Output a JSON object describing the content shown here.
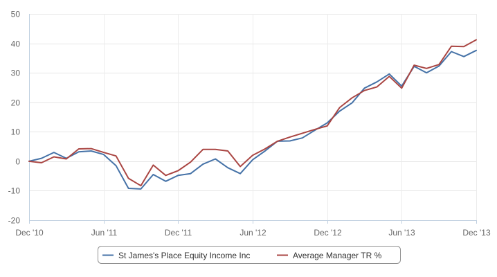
{
  "chart_data": {
    "type": "line",
    "title": "",
    "xlabel": "",
    "ylabel": "",
    "ylim": [
      -20,
      50
    ],
    "yticks": [
      -20,
      -10,
      0,
      10,
      20,
      30,
      40,
      50
    ],
    "xticks": [
      "Dec '10",
      "Jun '11",
      "Dec '11",
      "Jun '12",
      "Dec '12",
      "Jun '13",
      "Dec '13"
    ],
    "x": [
      "2010-12",
      "2011-01",
      "2011-02",
      "2011-03",
      "2011-04",
      "2011-05",
      "2011-06",
      "2011-07",
      "2011-08",
      "2011-09",
      "2011-10",
      "2011-11",
      "2011-12",
      "2012-01",
      "2012-02",
      "2012-03",
      "2012-04",
      "2012-05",
      "2012-06",
      "2012-07",
      "2012-08",
      "2012-09",
      "2012-10",
      "2012-11",
      "2012-12",
      "2013-01",
      "2013-02",
      "2013-03",
      "2013-04",
      "2013-05",
      "2013-06",
      "2013-07",
      "2013-08",
      "2013-09",
      "2013-10",
      "2013-11",
      "2013-12"
    ],
    "series": [
      {
        "name": "St James's Place Equity Income Inc",
        "color": "#4572a7",
        "values": [
          0,
          1,
          3,
          1,
          3.2,
          3.5,
          2.3,
          -1.5,
          -9.2,
          -9.4,
          -4.5,
          -6.8,
          -4.8,
          -4.2,
          -1,
          0.8,
          -2.2,
          -4.2,
          0.5,
          3.5,
          6.8,
          6.9,
          7.9,
          10.5,
          13,
          17,
          19.8,
          24.8,
          26.9,
          29.6,
          25.5,
          32.2,
          30,
          32.3,
          37.2,
          35.5,
          37.6
        ]
      },
      {
        "name": "Average Manager TR %",
        "color": "#aa4643",
        "values": [
          0,
          -0.5,
          1.5,
          0.8,
          4.2,
          4.3,
          3,
          1.8,
          -5.8,
          -8.3,
          -1.3,
          -4.8,
          -3.2,
          -0.3,
          4,
          4,
          3.5,
          -1.8,
          2,
          4.2,
          6.8,
          8.2,
          9.5,
          10.8,
          12,
          18.2,
          21.5,
          24,
          25.2,
          28.8,
          24.8,
          32.6,
          31.5,
          32.8,
          39,
          38.9,
          41.2
        ]
      }
    ],
    "grid": true,
    "legend": "bottom-center"
  }
}
